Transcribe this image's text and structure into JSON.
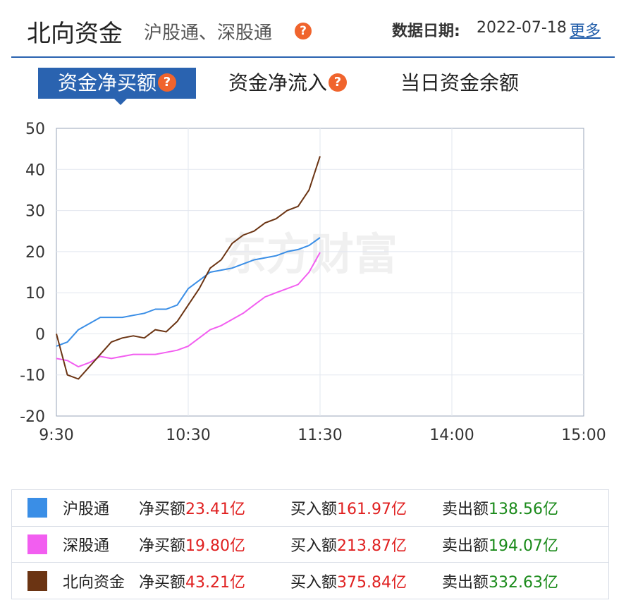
{
  "header": {
    "title": "北向资金",
    "subtitle": "沪股通、深股通",
    "help_glyph": "?",
    "date_label": "数据日期:",
    "date_value": "2022-07-18",
    "more_label": "更多"
  },
  "tabs": [
    {
      "label": "资金净买额",
      "active": true,
      "help": true
    },
    {
      "label": "资金净流入",
      "active": false,
      "help": true
    },
    {
      "label": "当日资金余额",
      "active": false,
      "help": false
    }
  ],
  "watermark": "东方财富",
  "colors": {
    "accent": "#2a63b0",
    "help": "#f0642d",
    "hgt": "#3a8ee6",
    "sgt": "#f25ef0",
    "north": "#6b3413",
    "buy": "#e02020",
    "sell": "#1a8a1a"
  },
  "chart_data": {
    "type": "line",
    "title": "",
    "xlabel": "",
    "ylabel": "",
    "ylim": [
      -20,
      50
    ],
    "yticks": [
      "50",
      "40",
      "30",
      "20",
      "10",
      "0",
      "-10",
      "-20"
    ],
    "xticks": [
      "9:30",
      "10:30",
      "11:30",
      "14:00",
      "15:00"
    ],
    "x_minutes": [
      0,
      5,
      10,
      15,
      20,
      25,
      30,
      35,
      40,
      45,
      50,
      55,
      60,
      65,
      70,
      75,
      80,
      85,
      90,
      95,
      100,
      105,
      110,
      115,
      120
    ],
    "grid": true,
    "series": [
      {
        "name": "沪股通",
        "color": "#3a8ee6",
        "values": [
          -3,
          -2,
          1,
          2.5,
          4,
          4,
          4,
          4.5,
          5,
          6,
          6,
          7,
          11,
          13,
          15,
          15.5,
          16,
          17,
          18,
          18.5,
          19,
          20,
          20.5,
          21.5,
          23.41
        ]
      },
      {
        "name": "深股通",
        "color": "#f25ef0",
        "values": [
          -6,
          -6.5,
          -8,
          -7,
          -5.5,
          -6,
          -5.5,
          -5,
          -5,
          -5,
          -4.5,
          -4,
          -3,
          -1,
          1,
          2,
          3.5,
          5,
          7,
          9,
          10,
          11,
          12,
          15,
          19.8
        ]
      },
      {
        "name": "北向资金",
        "color": "#6b3413",
        "values": [
          0,
          -10,
          -11,
          -8,
          -5,
          -2,
          -1,
          -0.5,
          -1,
          1,
          0.5,
          3,
          7,
          11,
          16,
          18,
          22,
          24,
          25,
          27,
          28,
          30,
          31,
          35,
          43.21
        ]
      }
    ]
  },
  "legend": [
    {
      "name": "沪股通",
      "color": "#3a8ee6",
      "net_label": "净买额",
      "net": "23.41亿",
      "buy_label": "买入额",
      "buy": "161.97亿",
      "sell_label": "卖出额",
      "sell": "138.56亿"
    },
    {
      "name": "深股通",
      "color": "#f25ef0",
      "net_label": "净买额",
      "net": "19.80亿",
      "buy_label": "买入额",
      "buy": "213.87亿",
      "sell_label": "卖出额",
      "sell": "194.07亿"
    },
    {
      "name": "北向资金",
      "color": "#6b3413",
      "net_label": "净买额",
      "net": "43.21亿",
      "buy_label": "买入额",
      "buy": "375.84亿",
      "sell_label": "卖出额",
      "sell": "332.63亿"
    }
  ]
}
